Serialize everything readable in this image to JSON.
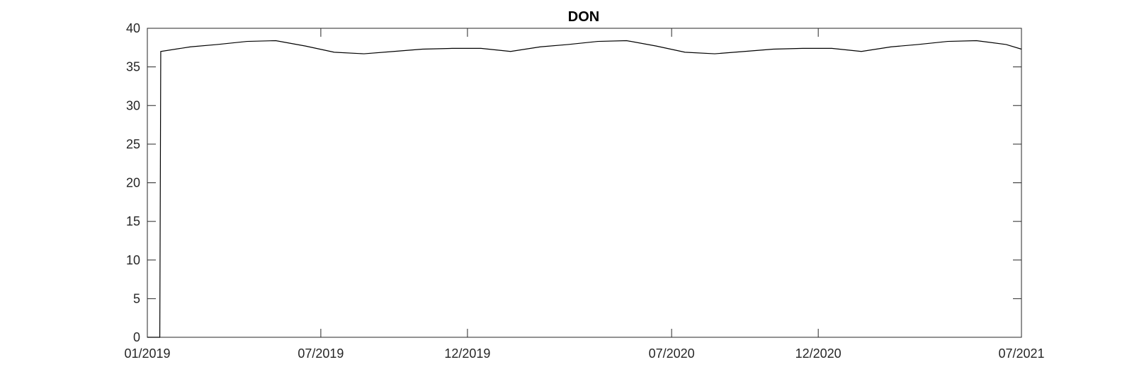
{
  "chart_data": {
    "type": "line",
    "title": "DON",
    "xlabel": "",
    "ylabel": "",
    "x_axis": {
      "type": "date",
      "range": [
        "2019-01-01",
        "2021-07-01"
      ],
      "ticks": [
        {
          "date": "2019-01-01",
          "label": "01/2019"
        },
        {
          "date": "2019-07-01",
          "label": "07/2019"
        },
        {
          "date": "2019-12-01",
          "label": "12/2019"
        },
        {
          "date": "2020-07-01",
          "label": "07/2020"
        },
        {
          "date": "2020-12-01",
          "label": "12/2020"
        },
        {
          "date": "2021-07-01",
          "label": "07/2021"
        }
      ]
    },
    "y_axis": {
      "range": [
        0,
        40
      ],
      "ticks": [
        0,
        5,
        10,
        15,
        20,
        25,
        30,
        35,
        40
      ]
    },
    "grid": false,
    "series": [
      {
        "color": "#000000",
        "points": [
          {
            "x": "2019-01-01",
            "y": 0
          },
          {
            "x": "2019-01-14",
            "y": 0
          },
          {
            "x": "2019-01-15",
            "y": 37.0
          },
          {
            "x": "2019-02-15",
            "y": 37.6
          },
          {
            "x": "2019-03-15",
            "y": 37.9
          },
          {
            "x": "2019-04-15",
            "y": 38.3
          },
          {
            "x": "2019-05-15",
            "y": 38.4
          },
          {
            "x": "2019-06-15",
            "y": 37.7
          },
          {
            "x": "2019-07-15",
            "y": 36.9
          },
          {
            "x": "2019-08-15",
            "y": 36.7
          },
          {
            "x": "2019-09-15",
            "y": 37.0
          },
          {
            "x": "2019-10-15",
            "y": 37.3
          },
          {
            "x": "2019-11-15",
            "y": 37.4
          },
          {
            "x": "2019-12-15",
            "y": 37.4
          },
          {
            "x": "2020-01-15",
            "y": 37.0
          },
          {
            "x": "2020-02-15",
            "y": 37.6
          },
          {
            "x": "2020-03-15",
            "y": 37.9
          },
          {
            "x": "2020-04-15",
            "y": 38.3
          },
          {
            "x": "2020-05-15",
            "y": 38.4
          },
          {
            "x": "2020-06-15",
            "y": 37.7
          },
          {
            "x": "2020-07-15",
            "y": 36.9
          },
          {
            "x": "2020-08-15",
            "y": 36.7
          },
          {
            "x": "2020-09-15",
            "y": 37.0
          },
          {
            "x": "2020-10-15",
            "y": 37.3
          },
          {
            "x": "2020-11-15",
            "y": 37.4
          },
          {
            "x": "2020-12-15",
            "y": 37.4
          },
          {
            "x": "2021-01-15",
            "y": 37.0
          },
          {
            "x": "2021-02-15",
            "y": 37.6
          },
          {
            "x": "2021-03-15",
            "y": 37.9
          },
          {
            "x": "2021-04-15",
            "y": 38.3
          },
          {
            "x": "2021-05-15",
            "y": 38.4
          },
          {
            "x": "2021-06-15",
            "y": 37.9
          },
          {
            "x": "2021-07-01",
            "y": 37.3
          }
        ]
      }
    ]
  }
}
